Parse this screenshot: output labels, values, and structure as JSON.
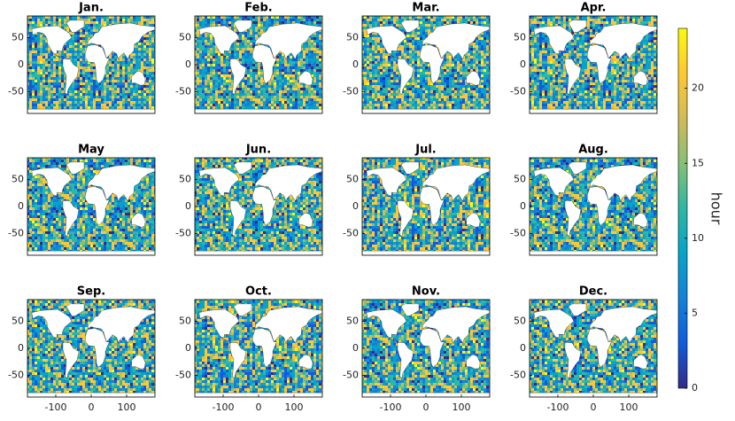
{
  "chart_data": [
    {
      "type": "map",
      "title": "Jan.",
      "xlim": [
        -180,
        180
      ],
      "ylim": [
        -90,
        90
      ],
      "yticks": [
        -50,
        0,
        50
      ]
    },
    {
      "type": "map",
      "title": "Feb.",
      "xlim": [
        -180,
        180
      ],
      "ylim": [
        -90,
        90
      ],
      "yticks": [
        -50,
        0,
        50
      ]
    },
    {
      "type": "map",
      "title": "Mar.",
      "xlim": [
        -180,
        180
      ],
      "ylim": [
        -90,
        90
      ],
      "yticks": [
        -50,
        0,
        50
      ]
    },
    {
      "type": "map",
      "title": "Apr.",
      "xlim": [
        -180,
        180
      ],
      "ylim": [
        -90,
        90
      ],
      "yticks": [
        -50,
        0,
        50
      ]
    },
    {
      "type": "map",
      "title": "May",
      "xlim": [
        -180,
        180
      ],
      "ylim": [
        -90,
        90
      ],
      "yticks": [
        -50,
        0,
        50
      ]
    },
    {
      "type": "map",
      "title": "Jun.",
      "xlim": [
        -180,
        180
      ],
      "ylim": [
        -90,
        90
      ],
      "yticks": [
        -50,
        0,
        50
      ]
    },
    {
      "type": "map",
      "title": "Jul.",
      "xlim": [
        -180,
        180
      ],
      "ylim": [
        -90,
        90
      ],
      "yticks": [
        -50,
        0,
        50
      ]
    },
    {
      "type": "map",
      "title": "Aug.",
      "xlim": [
        -180,
        180
      ],
      "ylim": [
        -90,
        90
      ],
      "yticks": [
        -50,
        0,
        50
      ]
    },
    {
      "type": "map",
      "title": "Sep.",
      "xlim": [
        -180,
        180
      ],
      "ylim": [
        -90,
        90
      ],
      "yticks": [
        -50,
        0,
        50
      ],
      "xticks": [
        -100,
        0,
        100
      ]
    },
    {
      "type": "map",
      "title": "Oct.",
      "xlim": [
        -180,
        180
      ],
      "ylim": [
        -90,
        90
      ],
      "yticks": [
        -50,
        0,
        50
      ],
      "xticks": [
        -100,
        0,
        100
      ]
    },
    {
      "type": "map",
      "title": "Nov.",
      "xlim": [
        -180,
        180
      ],
      "ylim": [
        -90,
        90
      ],
      "yticks": [
        -50,
        0,
        50
      ],
      "xticks": [
        -100,
        0,
        100
      ]
    },
    {
      "type": "map",
      "title": "Dec.",
      "xlim": [
        -180,
        180
      ],
      "ylim": [
        -90,
        90
      ],
      "yticks": [
        -50,
        0,
        50
      ],
      "xticks": [
        -100,
        0,
        100
      ]
    }
  ],
  "colorbar": {
    "label": "hour",
    "lim": [
      0,
      24
    ],
    "ticks": [
      0,
      5,
      10,
      15,
      20
    ],
    "colormap": [
      "#352a87",
      "#0f5cdd",
      "#1481d6",
      "#06a4ca",
      "#2eb7a4",
      "#87bf77",
      "#d1bb59",
      "#fec832",
      "#f9fb0e"
    ]
  }
}
